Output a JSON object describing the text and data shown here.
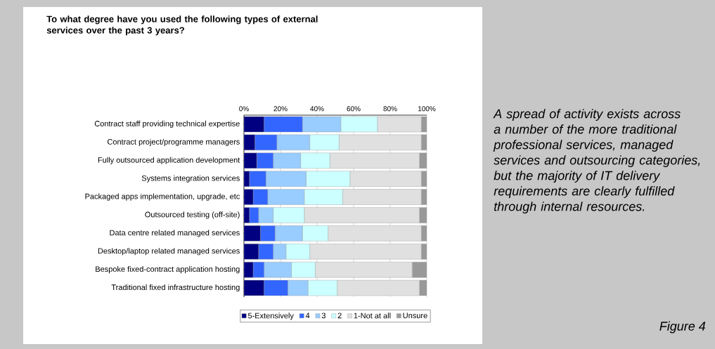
{
  "chart_data": {
    "type": "bar",
    "orientation": "horizontal",
    "stacked": true,
    "title": "To what degree have you used the following types of external services over the past 3 years?",
    "categories": [
      "Contract staff providing technical expertise",
      "Contract project/programme managers",
      "Fully outsourced application development",
      "Systems integration services",
      "Packaged apps implementation, upgrade, etc",
      "Outsourced testing (off-site)",
      "Data centre related managed services",
      "Desktop/laptop related managed services",
      "Bespoke fixed-contract application hosting",
      "Traditional fixed infrastructure hosting"
    ],
    "series": [
      {
        "name": "5-Extensively",
        "color": "#000080",
        "values": [
          11,
          6,
          7,
          3,
          5,
          3,
          9,
          8,
          5,
          11
        ]
      },
      {
        "name": "4",
        "color": "#3366ff",
        "values": [
          21,
          12,
          9,
          9,
          8,
          5,
          8,
          8,
          6,
          13
        ]
      },
      {
        "name": "3",
        "color": "#99ccff",
        "values": [
          21,
          18,
          15,
          22,
          20,
          8,
          15,
          7,
          15,
          11
        ]
      },
      {
        "name": "2",
        "color": "#ccffff",
        "values": [
          20,
          16,
          16,
          24,
          21,
          17,
          14,
          13,
          13,
          16
        ]
      },
      {
        "name": "1-Not at all",
        "color": "#e0e0e0",
        "values": [
          24,
          45,
          49,
          39,
          43,
          63,
          51,
          61,
          53,
          45
        ]
      },
      {
        "name": "Unsure",
        "color": "#999999",
        "values": [
          3,
          3,
          4,
          3,
          3,
          4,
          3,
          3,
          8,
          4
        ]
      }
    ],
    "xlim": [
      0,
      100
    ],
    "xticks": [
      {
        "value": 0,
        "label": "0%"
      },
      {
        "value": 20,
        "label": "20%"
      },
      {
        "value": 40,
        "label": "40%"
      },
      {
        "value": 60,
        "label": "60%"
      },
      {
        "value": 80,
        "label": "80%"
      },
      {
        "value": 100,
        "label": "100%"
      }
    ],
    "grid": "x",
    "legend": "bottom",
    "annotations": [
      "A spread of activity exists across a number of the more traditional professional services, managed services and outsourcing categories, but the majority of IT delivery requirements are clearly fulfilled through internal resources.",
      "Figure 4"
    ]
  }
}
